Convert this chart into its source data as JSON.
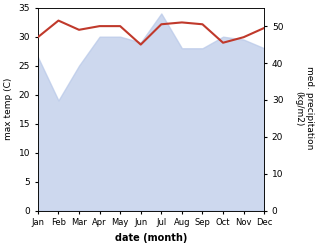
{
  "months": [
    "Jan",
    "Feb",
    "Mar",
    "Apr",
    "May",
    "Jun",
    "Jul",
    "Aug",
    "Sep",
    "Oct",
    "Nov",
    "Dec"
  ],
  "max_temp": [
    26.5,
    19.0,
    25.0,
    30.0,
    30.0,
    29.0,
    34.0,
    28.0,
    28.0,
    30.0,
    29.5,
    28.0
  ],
  "med_precip": [
    47.0,
    51.5,
    49.0,
    50.0,
    50.0,
    45.0,
    50.5,
    51.0,
    50.5,
    45.5,
    47.0,
    49.5
  ],
  "precip_color": "#c0392b",
  "temp_fill_color": "#b8c8e8",
  "temp_fill_alpha": 0.7,
  "left_ylim": [
    0,
    35
  ],
  "right_ylim": [
    0,
    55
  ],
  "left_yticks": [
    0,
    5,
    10,
    15,
    20,
    25,
    30,
    35
  ],
  "right_yticks": [
    0,
    10,
    20,
    30,
    40,
    50
  ],
  "xlabel": "date (month)",
  "ylabel_left": "max temp (C)",
  "ylabel_right": "med. precipitation \n(kg/m2)",
  "bg_color": "#ffffff"
}
